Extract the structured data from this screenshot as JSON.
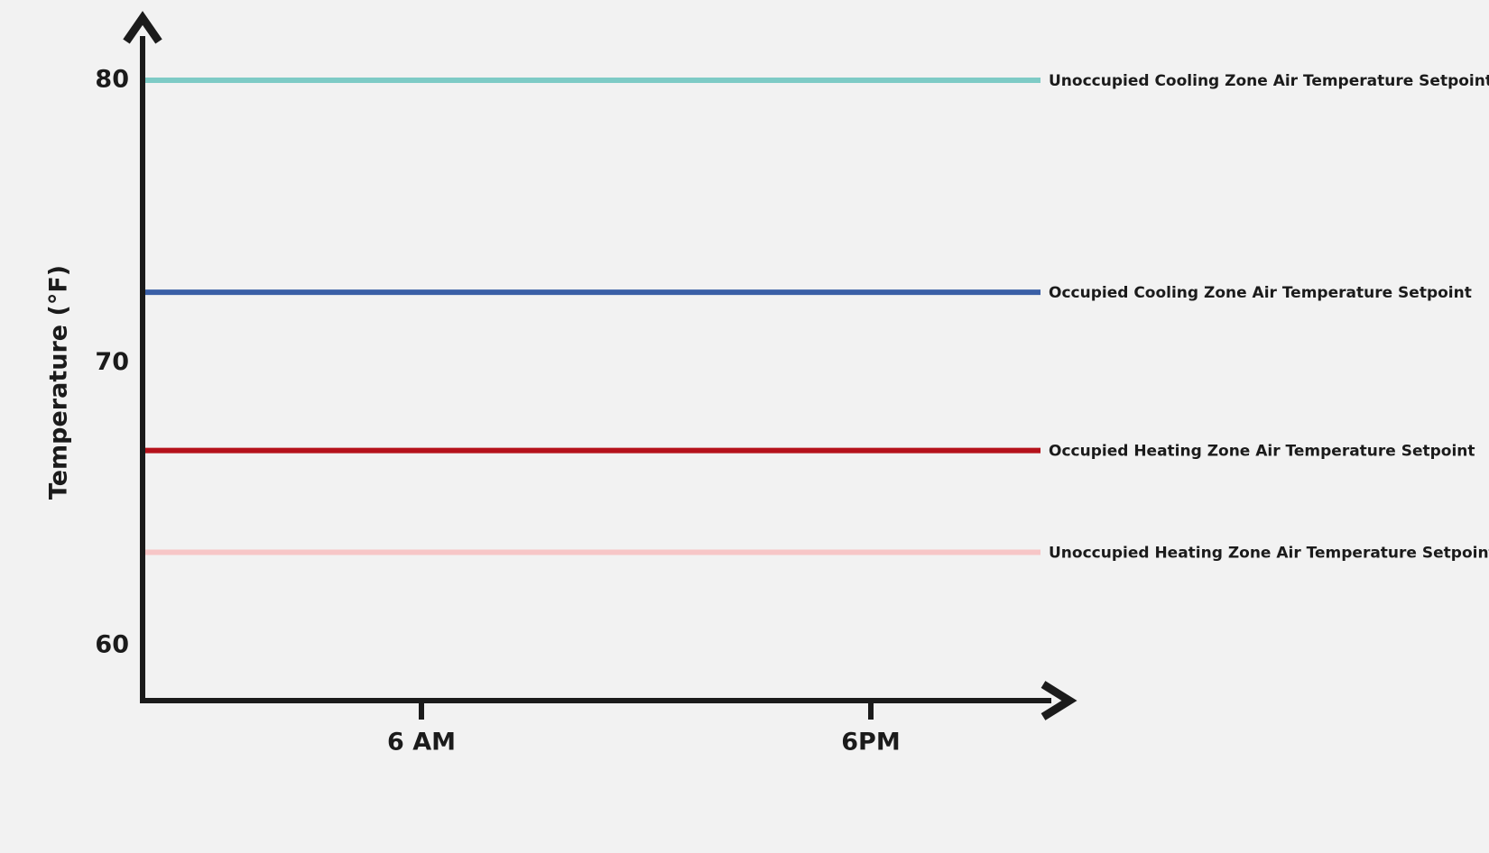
{
  "chart_data": {
    "type": "line",
    "title": "",
    "xlabel": "",
    "ylabel": "Temperature (°F)",
    "ylim": [
      58,
      82.5
    ],
    "y_ticks": [
      {
        "value": 80,
        "label": "80"
      },
      {
        "value": 70,
        "label": "70"
      },
      {
        "value": 60,
        "label": "60"
      }
    ],
    "x_ticks": [
      {
        "value": 6,
        "label": "6 AM"
      },
      {
        "value": 18,
        "label": "6PM"
      }
    ],
    "xlim": [
      0,
      30
    ],
    "grid": false,
    "legend": "inline-right",
    "series": [
      {
        "name": "Unoccupied Cooling Zone Air Temperature Setpoint",
        "x": [
          0,
          24
        ],
        "values": [
          80,
          80
        ],
        "color": "#7ecbc6"
      },
      {
        "name": "Occupied Cooling Zone Air Temperature Setpoint",
        "x": [
          0,
          24
        ],
        "values": [
          72.5,
          72.5
        ],
        "color": "#3a5fa6"
      },
      {
        "name": "Occupied Heating Zone Air Temperature Setpoint",
        "x": [
          0,
          24
        ],
        "values": [
          66.9,
          66.9
        ],
        "color": "#b5121b"
      },
      {
        "name": "Unoccupied Heating Zone Air Temperature Setpoint",
        "x": [
          0,
          24
        ],
        "values": [
          63.3,
          63.3
        ],
        "color": "#f7c6c7"
      }
    ],
    "axis_color": "#1b1b1b"
  }
}
